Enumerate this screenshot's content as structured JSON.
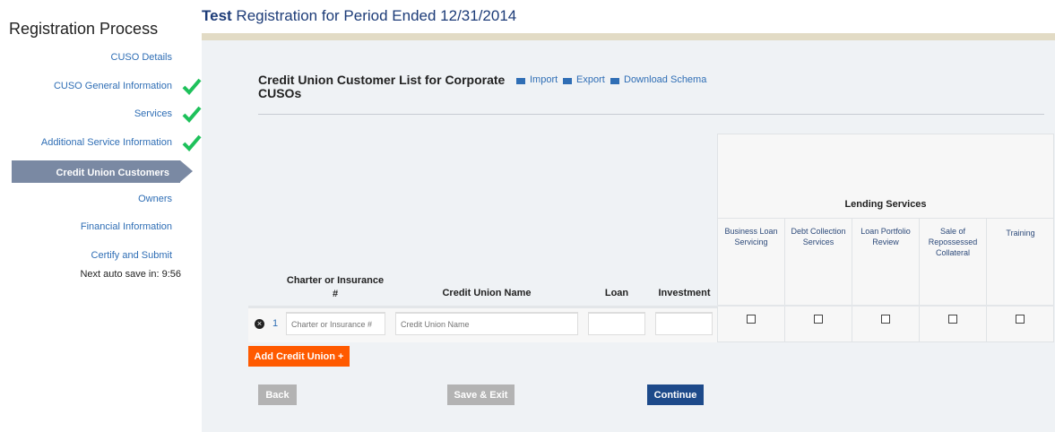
{
  "sidebar": {
    "title": "Registration Process",
    "items": [
      {
        "label": "CUSO Details",
        "complete": false
      },
      {
        "label": "CUSO General Information",
        "complete": true
      },
      {
        "label": "Services",
        "complete": true
      },
      {
        "label": "Additional Service Information",
        "complete": true
      },
      {
        "label": "Credit Union Customers",
        "active": true
      },
      {
        "label": "Owners",
        "complete": false
      },
      {
        "label": "Financial Information",
        "complete": false
      },
      {
        "label": "Certify and Submit",
        "complete": false
      }
    ],
    "autosave": "Next auto save in: 9:56"
  },
  "header": {
    "title_bold": "Test",
    "title_rest": " Registration for Period Ended 12/31/2014"
  },
  "section": {
    "title": "Credit Union Customer List for Corporate CUSOs",
    "links": {
      "import": "Import",
      "export": "Export",
      "download": "Download Schema"
    }
  },
  "table": {
    "group_header": "Lending Services",
    "columns": {
      "charter": "Charter or Insurance #",
      "name": "Credit Union Name",
      "loan": "Loan",
      "investment": "Investment"
    },
    "lending_columns": [
      "Business Loan Servicing",
      "Debt Collection Services",
      "Loan Portfolio Review",
      "Sale of Repossessed Collateral",
      "Training"
    ],
    "rows": [
      {
        "num": "1",
        "charter": "",
        "charter_placeholder": "Charter or Insurance #",
        "name": "",
        "name_placeholder": "Credit Union Name",
        "loan": "",
        "investment": "",
        "lending": [
          false,
          false,
          false,
          false,
          false
        ]
      }
    ]
  },
  "buttons": {
    "add": "Add Credit Union +",
    "back": "Back",
    "save_exit": "Save & Exit",
    "continue": "Continue"
  },
  "colors": {
    "accent": "#1d4a8a",
    "add": "#ff5a00",
    "disabled": "#b3b3b3",
    "check": "#1ec15b"
  }
}
